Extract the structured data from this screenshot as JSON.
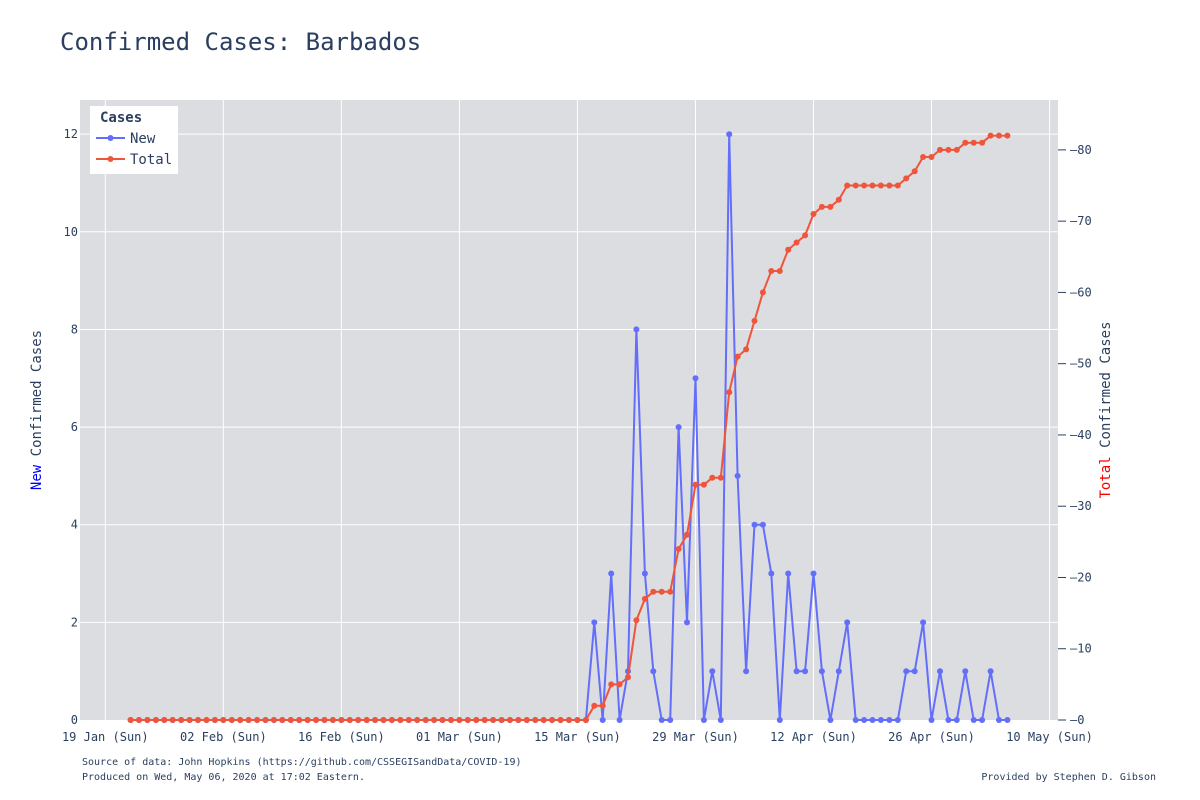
{
  "chart_data": {
    "type": "line",
    "title": "Confirmed Cases: Barbados",
    "x": {
      "start_date": "2020-01-22",
      "end_date": "2020-05-05",
      "range": [
        "2020-01-16",
        "2020-05-11"
      ],
      "tick_labels": [
        "19 Jan (Sun)",
        "02 Feb (Sun)",
        "16 Feb (Sun)",
        "01 Mar (Sun)",
        "15 Mar (Sun)",
        "29 Mar (Sun)",
        "12 Apr (Sun)",
        "26 Apr (Sun)",
        "10 May (Sun)"
      ]
    },
    "y_left": {
      "title_highlight": "New",
      "title_rest": " Confirmed Cases",
      "highlight_color": "#0000ff",
      "range": [
        0,
        12.7
      ],
      "ticks": [
        0,
        2,
        4,
        6,
        8,
        10,
        12
      ]
    },
    "y_right": {
      "title_highlight": "Total",
      "title_rest": " Confirmed Cases",
      "highlight_color": "#ff0000",
      "range": [
        0,
        87
      ],
      "ticks": [
        0,
        10,
        20,
        30,
        40,
        50,
        60,
        70,
        80
      ]
    },
    "legend": {
      "title": "Cases",
      "position": "top-left"
    },
    "grid": true,
    "series": [
      {
        "name": "New",
        "axis": "left",
        "color": "#636efa",
        "values": [
          0,
          0,
          0,
          0,
          0,
          0,
          0,
          0,
          0,
          0,
          0,
          0,
          0,
          0,
          0,
          0,
          0,
          0,
          0,
          0,
          0,
          0,
          0,
          0,
          0,
          0,
          0,
          0,
          0,
          0,
          0,
          0,
          0,
          0,
          0,
          0,
          0,
          0,
          0,
          0,
          0,
          0,
          0,
          0,
          0,
          0,
          0,
          0,
          0,
          0,
          0,
          0,
          0,
          0,
          0,
          2,
          0,
          3,
          0,
          1,
          8,
          3,
          1,
          0,
          0,
          6,
          2,
          7,
          0,
          1,
          0,
          12,
          5,
          1,
          4,
          4,
          3,
          0,
          3,
          1,
          1,
          3,
          1,
          0,
          1,
          2,
          0,
          0,
          0,
          0,
          0,
          0,
          1,
          1,
          2,
          0,
          1,
          0,
          0,
          1,
          0,
          0,
          1,
          0,
          0
        ]
      },
      {
        "name": "Total",
        "axis": "right",
        "color": "#ef553b",
        "values": [
          0,
          0,
          0,
          0,
          0,
          0,
          0,
          0,
          0,
          0,
          0,
          0,
          0,
          0,
          0,
          0,
          0,
          0,
          0,
          0,
          0,
          0,
          0,
          0,
          0,
          0,
          0,
          0,
          0,
          0,
          0,
          0,
          0,
          0,
          0,
          0,
          0,
          0,
          0,
          0,
          0,
          0,
          0,
          0,
          0,
          0,
          0,
          0,
          0,
          0,
          0,
          0,
          0,
          0,
          0,
          2,
          2,
          5,
          5,
          6,
          14,
          17,
          18,
          18,
          18,
          24,
          26,
          33,
          33,
          34,
          34,
          46,
          51,
          52,
          56,
          60,
          63,
          63,
          66,
          67,
          68,
          71,
          72,
          72,
          73,
          75,
          75,
          75,
          75,
          75,
          75,
          75,
          76,
          77,
          79,
          79,
          80,
          80,
          80,
          81,
          81,
          81,
          82,
          82,
          82
        ]
      }
    ]
  },
  "footer": {
    "source": "Source of data: John Hopkins (https://github.com/CSSEGISandData/COVID-19)",
    "produced": "Produced on Wed, May 06, 2020 at 17:02 Eastern.",
    "provider": "Provided by Stephen D. Gibson"
  }
}
